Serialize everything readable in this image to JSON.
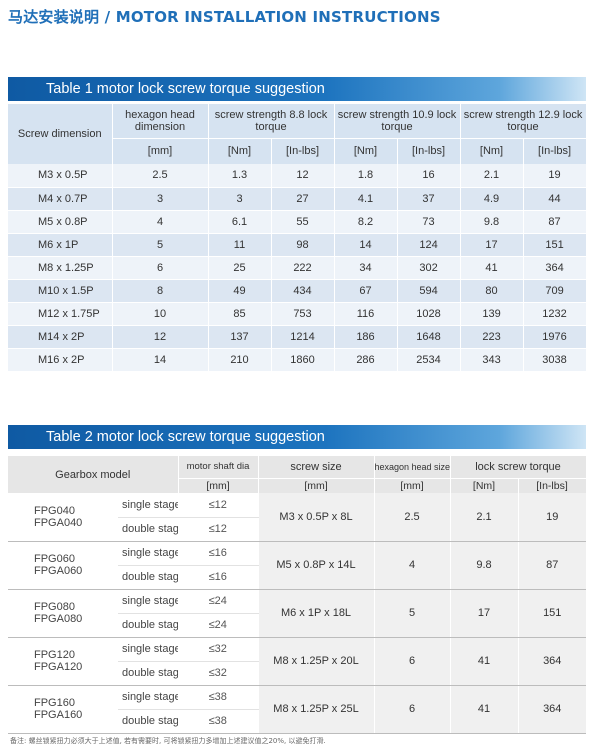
{
  "page_title": "马达安装说明 / MOTOR INSTALLATION INSTRUCTIONS",
  "table1": {
    "title": "Table 1    motor lock screw torque suggestion",
    "headers": {
      "screw_dimension": "Screw dimension",
      "hexagon_head": "hexagon head dimension",
      "strength_88": "screw strength 8.8 lock torque",
      "strength_109": "screw strength 10.9 lock torque",
      "strength_129": "screw strength 12.9 lock torque"
    },
    "units": [
      "[mm]",
      "[Nm]",
      "[In-lbs]",
      "[Nm]",
      "[In-lbs]",
      "[Nm]",
      "[In-lbs]"
    ],
    "rows": [
      [
        "M3 x 0.5P",
        "2.5",
        "1.3",
        "12",
        "1.8",
        "16",
        "2.1",
        "19"
      ],
      [
        "M4 x 0.7P",
        "3",
        "3",
        "27",
        "4.1",
        "37",
        "4.9",
        "44"
      ],
      [
        "M5 x 0.8P",
        "4",
        "6.1",
        "55",
        "8.2",
        "73",
        "9.8",
        "87"
      ],
      [
        "M6 x 1P",
        "5",
        "11",
        "98",
        "14",
        "124",
        "17",
        "151"
      ],
      [
        "M8 x 1.25P",
        "6",
        "25",
        "222",
        "34",
        "302",
        "41",
        "364"
      ],
      [
        "M10 x 1.5P",
        "8",
        "49",
        "434",
        "67",
        "594",
        "80",
        "709"
      ],
      [
        "M12 x 1.75P",
        "10",
        "85",
        "753",
        "116",
        "1028",
        "139",
        "1232"
      ],
      [
        "M14 x 2P",
        "12",
        "137",
        "1214",
        "186",
        "1648",
        "223",
        "1976"
      ],
      [
        "M16 x 2P",
        "14",
        "210",
        "1860",
        "286",
        "2534",
        "343",
        "3038"
      ]
    ]
  },
  "table2": {
    "title": "Table 2  motor lock screw torque suggestion",
    "headers": {
      "gearbox_model": "Gearbox model",
      "shaft_dia": "motor shaft dia",
      "screw_size": "screw size",
      "hexagon_head": "hexagon head size",
      "lock_torque": "lock screw torque"
    },
    "units": {
      "shaft": "[mm]",
      "screw": "[mm]",
      "hexagon": "[mm]",
      "torque_nm": "[Nm]",
      "torque_inlbs": "[In-lbs]"
    },
    "groups": [
      {
        "model": "FPG040\nFPGA040",
        "single_label": "single stage",
        "single_shaft": "≤12",
        "double_label": "double stage",
        "double_shaft": "≤12",
        "screw": "M3 x 0.5P x 8L",
        "hexagon": "2.5",
        "nm": "2.1",
        "inlbs": "19"
      },
      {
        "model": "FPG060\nFPGA060",
        "single_label": "single stage",
        "single_shaft": "≤16",
        "double_label": "double stage",
        "double_shaft": "≤16",
        "screw": "M5 x 0.8P x 14L",
        "hexagon": "4",
        "nm": "9.8",
        "inlbs": "87"
      },
      {
        "model": "FPG080\nFPGA080",
        "single_label": "single stage",
        "single_shaft": "≤24",
        "double_label": "double stage",
        "double_shaft": "≤24",
        "screw": "M6 x 1P x 18L",
        "hexagon": "5",
        "nm": "17",
        "inlbs": "151"
      },
      {
        "model": "FPG120\nFPGA120",
        "single_label": "single stage",
        "single_shaft": "≤32",
        "double_label": "double stage",
        "double_shaft": "≤32",
        "screw": "M8 x 1.25P x 20L",
        "hexagon": "6",
        "nm": "41",
        "inlbs": "364"
      },
      {
        "model": "FPG160\nFPGA160",
        "single_label": "single stage",
        "single_shaft": "≤38",
        "double_label": "double stage",
        "double_shaft": "≤38",
        "screw": "M8 x 1.25P x 25L",
        "hexagon": "6",
        "nm": "41",
        "inlbs": "364"
      }
    ]
  },
  "footnote": "备注: 螺丝锁紧扭力必须大于上述值, 若有需要时, 可将锁紧扭力多增加上述建议值之20%, 以避免打滑."
}
